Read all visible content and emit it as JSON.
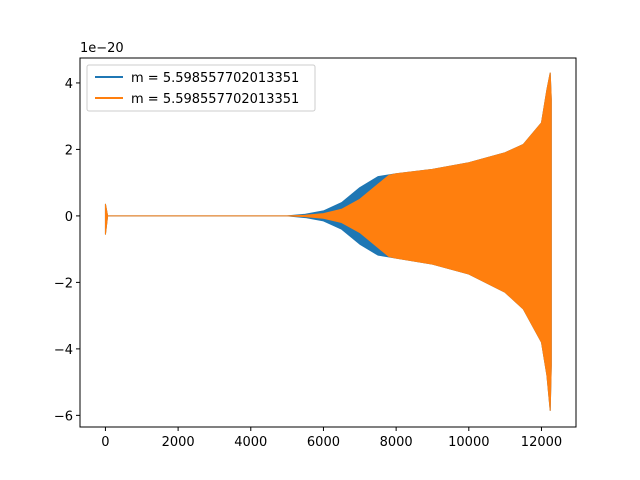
{
  "chart_data": {
    "type": "line",
    "title": "",
    "xlabel": "",
    "ylabel": "",
    "y_offset_label": "1e−20",
    "xlim": [
      -700,
      12950
    ],
    "ylim": [
      -6.35,
      4.75
    ],
    "x_ticks": [
      0,
      2000,
      4000,
      6000,
      8000,
      10000,
      12000
    ],
    "x_tick_labels": [
      "0",
      "2000",
      "4000",
      "6000",
      "8000",
      "10000",
      "12000"
    ],
    "y_ticks": [
      -6,
      -4,
      -2,
      0,
      2,
      4
    ],
    "y_tick_labels": [
      "−6",
      "−4",
      "−2",
      "0",
      "2",
      "4"
    ],
    "grid": false,
    "legend_position": "upper-left",
    "series": [
      {
        "name": "m = 5.598557702013351",
        "color": "#1f77b4",
        "envelope_upper": [
          [
            0,
            0.35
          ],
          [
            60,
            0.0
          ],
          [
            5000,
            0.0
          ],
          [
            5500,
            0.05
          ],
          [
            6000,
            0.15
          ],
          [
            6500,
            0.4
          ],
          [
            7000,
            0.85
          ],
          [
            7500,
            1.18
          ],
          [
            8000,
            1.27
          ],
          [
            9000,
            1.4
          ],
          [
            10000,
            1.6
          ],
          [
            11000,
            1.9
          ],
          [
            11500,
            2.15
          ],
          [
            12000,
            2.8
          ],
          [
            12150,
            3.8
          ],
          [
            12240,
            4.3
          ],
          [
            12270,
            3.5
          ]
        ],
        "envelope_lower": [
          [
            0,
            -0.55
          ],
          [
            60,
            0.0
          ],
          [
            5000,
            0.0
          ],
          [
            5500,
            -0.05
          ],
          [
            6000,
            -0.15
          ],
          [
            6500,
            -0.4
          ],
          [
            7000,
            -0.85
          ],
          [
            7500,
            -1.18
          ],
          [
            8000,
            -1.27
          ],
          [
            9000,
            -1.45
          ],
          [
            10000,
            -1.75
          ],
          [
            11000,
            -2.3
          ],
          [
            11500,
            -2.8
          ],
          [
            12000,
            -3.8
          ],
          [
            12150,
            -4.8
          ],
          [
            12240,
            -5.85
          ],
          [
            12270,
            -4.5
          ]
        ]
      },
      {
        "name": "m = 5.598557702013351",
        "color": "#ff7f0e",
        "envelope_upper": [
          [
            0,
            0.35
          ],
          [
            60,
            0.0
          ],
          [
            5000,
            0.0
          ],
          [
            5500,
            0.02
          ],
          [
            6000,
            0.07
          ],
          [
            6500,
            0.2
          ],
          [
            7000,
            0.5
          ],
          [
            7500,
            0.95
          ],
          [
            7800,
            1.22
          ],
          [
            8000,
            1.27
          ],
          [
            9000,
            1.4
          ],
          [
            10000,
            1.6
          ],
          [
            11000,
            1.9
          ],
          [
            11500,
            2.15
          ],
          [
            12000,
            2.8
          ],
          [
            12150,
            3.8
          ],
          [
            12240,
            4.3
          ],
          [
            12270,
            3.5
          ]
        ],
        "envelope_lower": [
          [
            0,
            -0.55
          ],
          [
            60,
            0.0
          ],
          [
            5000,
            0.0
          ],
          [
            5500,
            -0.02
          ],
          [
            6000,
            -0.07
          ],
          [
            6500,
            -0.2
          ],
          [
            7000,
            -0.5
          ],
          [
            7500,
            -0.95
          ],
          [
            7800,
            -1.22
          ],
          [
            8000,
            -1.27
          ],
          [
            9000,
            -1.45
          ],
          [
            10000,
            -1.75
          ],
          [
            11000,
            -2.3
          ],
          [
            11500,
            -2.8
          ],
          [
            12000,
            -3.8
          ],
          [
            12150,
            -4.8
          ],
          [
            12240,
            -5.85
          ],
          [
            12270,
            -4.5
          ]
        ]
      }
    ]
  }
}
